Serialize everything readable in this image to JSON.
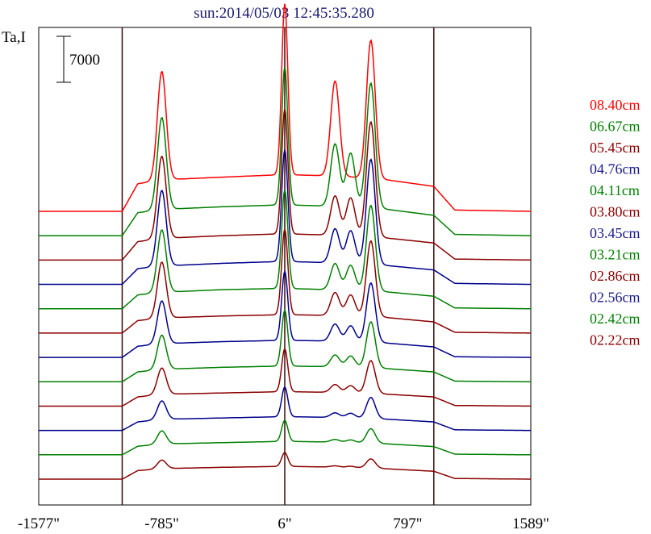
{
  "chart_data": {
    "type": "line",
    "title": "sun:2014/05/03 12:45:35.280",
    "ylabel": "Ta,I",
    "scale_bar_label": "7000",
    "x_tick_labels": [
      "-1577\"",
      "-785\"",
      "6\"",
      "797\"",
      "1589\""
    ],
    "xlim": [
      -1577,
      1589
    ],
    "vertical_lines_x": [
      -1040,
      6,
      965
    ],
    "grid": false,
    "legend_position": "right",
    "series": [
      {
        "name": "08.40cm",
        "color": "#ff0000",
        "profile": {
          "base": 0,
          "edge": 11000,
          "plateau": [
            [
              -1577,
              0
            ],
            [
              -1040,
              0
            ],
            [
              -940,
              4200
            ],
            [
              -785,
              4800
            ],
            [
              -400,
              5200
            ],
            [
              0,
              5600
            ],
            [
              300,
              5400
            ],
            [
              600,
              5000
            ],
            [
              965,
              3800
            ],
            [
              1100,
              200
            ],
            [
              1589,
              0
            ]
          ],
          "peaks": [
            {
              "x": -785,
              "height": 16500
            },
            {
              "x": 6,
              "height": 26000
            },
            {
              "x": 330,
              "height": 14500
            },
            {
              "x": 560,
              "height": 21000
            }
          ]
        }
      },
      {
        "name": "06.67cm",
        "color": "#008000",
        "profile": {
          "base": 0,
          "edge": 9000,
          "plateau": [
            [
              -1577,
              0
            ],
            [
              -1040,
              0
            ],
            [
              -940,
              3500
            ],
            [
              -785,
              4000
            ],
            [
              -400,
              4400
            ],
            [
              0,
              4700
            ],
            [
              300,
              4500
            ],
            [
              600,
              4200
            ],
            [
              965,
              3100
            ],
            [
              1100,
              200
            ],
            [
              1589,
              0
            ]
          ],
          "peaks": [
            {
              "x": -785,
              "height": 14000
            },
            {
              "x": 6,
              "height": 21000
            },
            {
              "x": 330,
              "height": 9500
            },
            {
              "x": 430,
              "height": 8200
            },
            {
              "x": 560,
              "height": 19000
            }
          ]
        }
      },
      {
        "name": "05.45cm",
        "color": "#8b0000",
        "profile": {
          "base": 0,
          "edge": 8000,
          "plateau": [
            [
              -1577,
              0
            ],
            [
              -1040,
              0
            ],
            [
              -940,
              2800
            ],
            [
              -785,
              3300
            ],
            [
              -400,
              3700
            ],
            [
              0,
              4000
            ],
            [
              300,
              3800
            ],
            [
              600,
              3500
            ],
            [
              965,
              2600
            ],
            [
              1100,
              150
            ],
            [
              1589,
              0
            ]
          ],
          "peaks": [
            {
              "x": -785,
              "height": 12500
            },
            {
              "x": 6,
              "height": 19000
            },
            {
              "x": 330,
              "height": 6000
            },
            {
              "x": 430,
              "height": 5800
            },
            {
              "x": 560,
              "height": 17500
            }
          ]
        }
      },
      {
        "name": "04.76cm",
        "color": "#00008b",
        "profile": {
          "base": 0,
          "edge": 7000,
          "plateau": [
            [
              -1577,
              0
            ],
            [
              -1040,
              0
            ],
            [
              -940,
              2400
            ],
            [
              -785,
              2800
            ],
            [
              -400,
              3200
            ],
            [
              0,
              3500
            ],
            [
              300,
              3300
            ],
            [
              600,
              3000
            ],
            [
              965,
              2200
            ],
            [
              1100,
              150
            ],
            [
              1589,
              0
            ]
          ],
          "peaks": [
            {
              "x": -785,
              "height": 11500
            },
            {
              "x": 6,
              "height": 17000
            },
            {
              "x": 330,
              "height": 5200
            },
            {
              "x": 430,
              "height": 5000
            },
            {
              "x": 560,
              "height": 16000
            }
          ]
        }
      },
      {
        "name": "04.11cm",
        "color": "#008000",
        "profile": {
          "base": 0,
          "edge": 6000,
          "plateau": [
            [
              -1577,
              0
            ],
            [
              -1040,
              0
            ],
            [
              -940,
              2100
            ],
            [
              -785,
              2500
            ],
            [
              -400,
              2900
            ],
            [
              0,
              3100
            ],
            [
              300,
              2900
            ],
            [
              600,
              2700
            ],
            [
              965,
              1900
            ],
            [
              1100,
              120
            ],
            [
              1589,
              0
            ]
          ],
          "peaks": [
            {
              "x": -785,
              "height": 9500
            },
            {
              "x": 6,
              "height": 15000
            },
            {
              "x": 330,
              "height": 4000
            },
            {
              "x": 430,
              "height": 3800
            },
            {
              "x": 560,
              "height": 13000
            }
          ]
        }
      },
      {
        "name": "03.80cm",
        "color": "#8b0000",
        "profile": {
          "base": 0,
          "edge": 5500,
          "plateau": [
            [
              -1577,
              0
            ],
            [
              -1040,
              0
            ],
            [
              -940,
              1900
            ],
            [
              -785,
              2300
            ],
            [
              -400,
              2600
            ],
            [
              0,
              2800
            ],
            [
              300,
              2700
            ],
            [
              600,
              2500
            ],
            [
              965,
              1700
            ],
            [
              1100,
              120
            ],
            [
              1589,
              0
            ]
          ],
          "peaks": [
            {
              "x": -785,
              "height": 8500
            },
            {
              "x": 6,
              "height": 13000
            },
            {
              "x": 330,
              "height": 3500
            },
            {
              "x": 430,
              "height": 3200
            },
            {
              "x": 560,
              "height": 11500
            }
          ]
        }
      },
      {
        "name": "03.45cm",
        "color": "#00008b",
        "profile": {
          "base": 0,
          "edge": 5000,
          "plateau": [
            [
              -1577,
              0
            ],
            [
              -1040,
              0
            ],
            [
              -940,
              1700
            ],
            [
              -785,
              2100
            ],
            [
              -400,
              2400
            ],
            [
              0,
              2600
            ],
            [
              300,
              2500
            ],
            [
              600,
              2300
            ],
            [
              965,
              1600
            ],
            [
              1100,
              100
            ],
            [
              1589,
              0
            ]
          ],
          "peaks": [
            {
              "x": -785,
              "height": 6500
            },
            {
              "x": 6,
              "height": 10500
            },
            {
              "x": 330,
              "height": 2600
            },
            {
              "x": 430,
              "height": 2400
            },
            {
              "x": 560,
              "height": 9000
            }
          ]
        }
      },
      {
        "name": "03.21cm",
        "color": "#008000",
        "profile": {
          "base": 0,
          "edge": 4500,
          "plateau": [
            [
              -1577,
              0
            ],
            [
              -1040,
              0
            ],
            [
              -940,
              1500
            ],
            [
              -785,
              1900
            ],
            [
              -400,
              2200
            ],
            [
              0,
              2400
            ],
            [
              300,
              2300
            ],
            [
              600,
              2100
            ],
            [
              965,
              1500
            ],
            [
              1100,
              100
            ],
            [
              1589,
              0
            ]
          ],
          "peaks": [
            {
              "x": -785,
              "height": 5200
            },
            {
              "x": 6,
              "height": 8500
            },
            {
              "x": 330,
              "height": 1800
            },
            {
              "x": 430,
              "height": 1700
            },
            {
              "x": 560,
              "height": 7000
            }
          ]
        }
      },
      {
        "name": "02.86cm",
        "color": "#8b0000",
        "profile": {
          "base": 0,
          "edge": 4200,
          "plateau": [
            [
              -1577,
              0
            ],
            [
              -1040,
              0
            ],
            [
              -940,
              1400
            ],
            [
              -785,
              1800
            ],
            [
              -400,
              2000
            ],
            [
              0,
              2200
            ],
            [
              300,
              2100
            ],
            [
              600,
              1900
            ],
            [
              965,
              1400
            ],
            [
              1100,
              100
            ],
            [
              1589,
              0
            ]
          ],
          "peaks": [
            {
              "x": -785,
              "height": 4000
            },
            {
              "x": 6,
              "height": 6500
            },
            {
              "x": 330,
              "height": 1200
            },
            {
              "x": 430,
              "height": 1100
            },
            {
              "x": 560,
              "height": 5000
            }
          ]
        }
      },
      {
        "name": "02.56cm",
        "color": "#00008b",
        "profile": {
          "base": 0,
          "edge": 4000,
          "plateau": [
            [
              -1577,
              0
            ],
            [
              -1040,
              0
            ],
            [
              -940,
              1300
            ],
            [
              -785,
              1700
            ],
            [
              -400,
              1900
            ],
            [
              0,
              2100
            ],
            [
              300,
              2000
            ],
            [
              600,
              1800
            ],
            [
              965,
              1300
            ],
            [
              1100,
              100
            ],
            [
              1589,
              0
            ]
          ],
          "peaks": [
            {
              "x": -785,
              "height": 2800
            },
            {
              "x": 6,
              "height": 4500
            },
            {
              "x": 330,
              "height": 700
            },
            {
              "x": 430,
              "height": 700
            },
            {
              "x": 560,
              "height": 3200
            }
          ]
        }
      },
      {
        "name": "02.42cm",
        "color": "#008000",
        "profile": {
          "base": 0,
          "edge": 3800,
          "plateau": [
            [
              -1577,
              0
            ],
            [
              -1040,
              0
            ],
            [
              -940,
              1300
            ],
            [
              -785,
              1650
            ],
            [
              -400,
              1850
            ],
            [
              0,
              2050
            ],
            [
              300,
              1950
            ],
            [
              600,
              1750
            ],
            [
              965,
              1250
            ],
            [
              1100,
              100
            ],
            [
              1589,
              0
            ]
          ],
          "peaks": [
            {
              "x": -785,
              "height": 2000
            },
            {
              "x": 6,
              "height": 3200
            },
            {
              "x": 330,
              "height": 400
            },
            {
              "x": 430,
              "height": 400
            },
            {
              "x": 560,
              "height": 2200
            }
          ]
        }
      },
      {
        "name": "02.22cm",
        "color": "#8b0000",
        "profile": {
          "base": 0,
          "edge": 3600,
          "plateau": [
            [
              -1577,
              0
            ],
            [
              -1040,
              0
            ],
            [
              -940,
              1300
            ],
            [
              -785,
              1600
            ],
            [
              -400,
              1800
            ],
            [
              0,
              1950
            ],
            [
              300,
              1850
            ],
            [
              600,
              1650
            ],
            [
              965,
              1200
            ],
            [
              1100,
              100
            ],
            [
              1589,
              0
            ]
          ],
          "peaks": [
            {
              "x": -785,
              "height": 1300
            },
            {
              "x": 6,
              "height": 2100
            },
            {
              "x": 330,
              "height": 200
            },
            {
              "x": 430,
              "height": 200
            },
            {
              "x": 560,
              "height": 1400
            }
          ]
        }
      }
    ]
  }
}
